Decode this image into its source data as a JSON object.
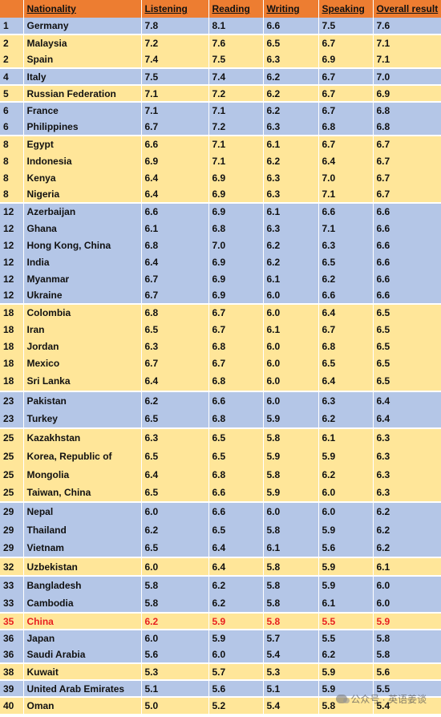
{
  "columns": [
    "",
    "Nationality",
    "Listening",
    "Reading",
    "Writing",
    "Speaking",
    "Overall result"
  ],
  "rows": [
    {
      "rank": "1",
      "nationality": "Germany",
      "listening": "7.8",
      "reading": "8.1",
      "writing": "6.6",
      "speaking": "7.5",
      "overall": "7.6",
      "band": "blue",
      "h": 21
    },
    {
      "rank": "2",
      "nationality": "Malaysia",
      "listening": "7.2",
      "reading": "7.6",
      "writing": "6.5",
      "speaking": "6.7",
      "overall": "7.1",
      "band": "yellow",
      "h": 21
    },
    {
      "rank": "2",
      "nationality": "Spain",
      "listening": "7.4",
      "reading": "7.5",
      "writing": "6.3",
      "speaking": "6.9",
      "overall": "7.1",
      "band": "yellow",
      "h": 21
    },
    {
      "rank": "4",
      "nationality": "Italy",
      "listening": "7.5",
      "reading": "7.4",
      "writing": "6.2",
      "speaking": "6.7",
      "overall": "7.0",
      "band": "blue",
      "h": 21
    },
    {
      "rank": "5",
      "nationality": "Russian Federation",
      "listening": "7.1",
      "reading": "7.2",
      "writing": "6.2",
      "speaking": "6.7",
      "overall": "6.9",
      "band": "yellow",
      "h": 21
    },
    {
      "rank": "6",
      "nationality": "France",
      "listening": "7.1",
      "reading": "7.1",
      "writing": "6.2",
      "speaking": "6.7",
      "overall": "6.8",
      "band": "blue",
      "h": 21
    },
    {
      "rank": "6",
      "nationality": "Philippines",
      "listening": "6.7",
      "reading": "7.2",
      "writing": "6.3",
      "speaking": "6.8",
      "overall": "6.8",
      "band": "blue",
      "h": 21
    },
    {
      "rank": "8",
      "nationality": "Egypt",
      "listening": "6.6",
      "reading": "7.1",
      "writing": "6.1",
      "speaking": "6.7",
      "overall": "6.7",
      "band": "yellow",
      "h": 21
    },
    {
      "rank": "8",
      "nationality": "Indonesia",
      "listening": "6.9",
      "reading": "7.1",
      "writing": "6.2",
      "speaking": "6.4",
      "overall": "6.7",
      "band": "yellow",
      "h": 21
    },
    {
      "rank": "8",
      "nationality": "Kenya",
      "listening": "6.4",
      "reading": "6.9",
      "writing": "6.3",
      "speaking": "7.0",
      "overall": "6.7",
      "band": "yellow",
      "h": 21
    },
    {
      "rank": "8",
      "nationality": "Nigeria",
      "listening": "6.4",
      "reading": "6.9",
      "writing": "6.3",
      "speaking": "7.1",
      "overall": "6.7",
      "band": "yellow",
      "h": 21
    },
    {
      "rank": "12",
      "nationality": "Azerbaijan",
      "listening": "6.6",
      "reading": "6.9",
      "writing": "6.1",
      "speaking": "6.6",
      "overall": "6.6",
      "band": "blue",
      "h": 21
    },
    {
      "rank": "12",
      "nationality": "Ghana",
      "listening": "6.1",
      "reading": "6.8",
      "writing": "6.3",
      "speaking": "7.1",
      "overall": "6.6",
      "band": "blue",
      "h": 21
    },
    {
      "rank": "12",
      "nationality": "Hong Kong, China",
      "listening": "6.8",
      "reading": "7.0",
      "writing": "6.2",
      "speaking": "6.3",
      "overall": "6.6",
      "band": "blue",
      "h": 21
    },
    {
      "rank": "12",
      "nationality": "India",
      "listening": "6.4",
      "reading": "6.9",
      "writing": "6.2",
      "speaking": "6.5",
      "overall": "6.6",
      "band": "blue",
      "h": 21
    },
    {
      "rank": "12",
      "nationality": "Myanmar",
      "listening": "6.7",
      "reading": "6.9",
      "writing": "6.1",
      "speaking": "6.2",
      "overall": "6.6",
      "band": "blue",
      "h": 21
    },
    {
      "rank": "12",
      "nationality": "Ukraine",
      "listening": "6.7",
      "reading": "6.9",
      "writing": "6.0",
      "speaking": "6.6",
      "overall": "6.6",
      "band": "blue",
      "h": 21
    },
    {
      "rank": "18",
      "nationality": "Colombia",
      "listening": "6.8",
      "reading": "6.7",
      "writing": "6.0",
      "speaking": "6.4",
      "overall": "6.5",
      "band": "yellow",
      "h": 21
    },
    {
      "rank": "18",
      "nationality": "Iran",
      "listening": "6.5",
      "reading": "6.7",
      "writing": "6.1",
      "speaking": "6.7",
      "overall": "6.5",
      "band": "yellow",
      "h": 21
    },
    {
      "rank": "18",
      "nationality": "Jordan",
      "listening": "6.3",
      "reading": "6.8",
      "writing": "6.0",
      "speaking": "6.8",
      "overall": "6.5",
      "band": "yellow",
      "h": 21
    },
    {
      "rank": "18",
      "nationality": "Mexico",
      "listening": "6.7",
      "reading": "6.7",
      "writing": "6.0",
      "speaking": "6.5",
      "overall": "6.5",
      "band": "yellow",
      "h": 21
    },
    {
      "rank": "18",
      "nationality": "Sri Lanka",
      "listening": "6.4",
      "reading": "6.8",
      "writing": "6.0",
      "speaking": "6.4",
      "overall": "6.5",
      "band": "yellow",
      "h": 25
    },
    {
      "rank": "23",
      "nationality": "Pakistan",
      "listening": "6.2",
      "reading": "6.6",
      "writing": "6.0",
      "speaking": "6.3",
      "overall": "6.4",
      "band": "blue",
      "h": 23
    },
    {
      "rank": "23",
      "nationality": "Turkey",
      "listening": "6.5",
      "reading": "6.8",
      "writing": "5.9",
      "speaking": "6.2",
      "overall": "6.4",
      "band": "blue",
      "h": 23
    },
    {
      "rank": "25",
      "nationality": "Kazakhstan",
      "listening": "6.3",
      "reading": "6.5",
      "writing": "5.8",
      "speaking": "6.1",
      "overall": "6.3",
      "band": "yellow",
      "h": 23
    },
    {
      "rank": "25",
      "nationality": "Korea, Republic of",
      "listening": "6.5",
      "reading": "6.5",
      "writing": "5.9",
      "speaking": "5.9",
      "overall": "6.3",
      "band": "yellow",
      "h": 23
    },
    {
      "rank": "25",
      "nationality": "Mongolia",
      "listening": "6.4",
      "reading": "6.8",
      "writing": "5.8",
      "speaking": "6.2",
      "overall": "6.3",
      "band": "yellow",
      "h": 23
    },
    {
      "rank": "25",
      "nationality": "Taiwan, China",
      "listening": "6.5",
      "reading": "6.6",
      "writing": "5.9",
      "speaking": "6.0",
      "overall": "6.3",
      "band": "yellow",
      "h": 23
    },
    {
      "rank": "29",
      "nationality": "Nepal",
      "listening": "6.0",
      "reading": "6.6",
      "writing": "6.0",
      "speaking": "6.0",
      "overall": "6.2",
      "band": "blue",
      "h": 23
    },
    {
      "rank": "29",
      "nationality": "Thailand",
      "listening": "6.2",
      "reading": "6.5",
      "writing": "5.8",
      "speaking": "5.9",
      "overall": "6.2",
      "band": "blue",
      "h": 23
    },
    {
      "rank": "29",
      "nationality": "Vietnam",
      "listening": "6.5",
      "reading": "6.4",
      "writing": "6.1",
      "speaking": "5.6",
      "overall": "6.2",
      "band": "blue",
      "h": 23
    },
    {
      "rank": "32",
      "nationality": "Uzbekistan",
      "listening": "6.0",
      "reading": "6.4",
      "writing": "5.8",
      "speaking": "5.9",
      "overall": "6.1",
      "band": "yellow",
      "h": 23
    },
    {
      "rank": "33",
      "nationality": "Bangladesh",
      "listening": "5.8",
      "reading": "6.2",
      "writing": "5.8",
      "speaking": "5.9",
      "overall": "6.0",
      "band": "blue",
      "h": 23
    },
    {
      "rank": "33",
      "nationality": "Cambodia",
      "listening": "5.8",
      "reading": "6.2",
      "writing": "5.8",
      "speaking": "6.1",
      "overall": "6.0",
      "band": "blue",
      "h": 23
    },
    {
      "rank": "35",
      "nationality": "China",
      "listening": "6.2",
      "reading": "5.9",
      "writing": "5.8",
      "speaking": "5.5",
      "overall": "5.9",
      "band": "yellow",
      "h": 21,
      "highlight": true
    },
    {
      "rank": "36",
      "nationality": "Japan",
      "listening": "6.0",
      "reading": "5.9",
      "writing": "5.7",
      "speaking": "5.5",
      "overall": "5.8",
      "band": "blue",
      "h": 21
    },
    {
      "rank": "36",
      "nationality": "Saudi Arabia",
      "listening": "5.6",
      "reading": "6.0",
      "writing": "5.4",
      "speaking": "6.2",
      "overall": "5.8",
      "band": "blue",
      "h": 21
    },
    {
      "rank": "38",
      "nationality": "Kuwait",
      "listening": "5.3",
      "reading": "5.7",
      "writing": "5.3",
      "speaking": "5.9",
      "overall": "5.6",
      "band": "yellow",
      "h": 21
    },
    {
      "rank": "39",
      "nationality": "United Arab Emirates",
      "listening": "5.1",
      "reading": "5.6",
      "writing": "5.1",
      "speaking": "5.9",
      "overall": "5.5",
      "band": "blue",
      "h": 21
    },
    {
      "rank": "40",
      "nationality": "Oman",
      "listening": "5.0",
      "reading": "5.2",
      "writing": "5.4",
      "speaking": "5.8",
      "overall": "5.4",
      "band": "yellow",
      "h": 21
    }
  ],
  "watermark": "公众号 · 英语姜谈",
  "colors": {
    "header": "#ed7d31",
    "blue_band": "#b4c6e7",
    "yellow_band": "#ffe699",
    "highlight_text": "#e82020"
  }
}
